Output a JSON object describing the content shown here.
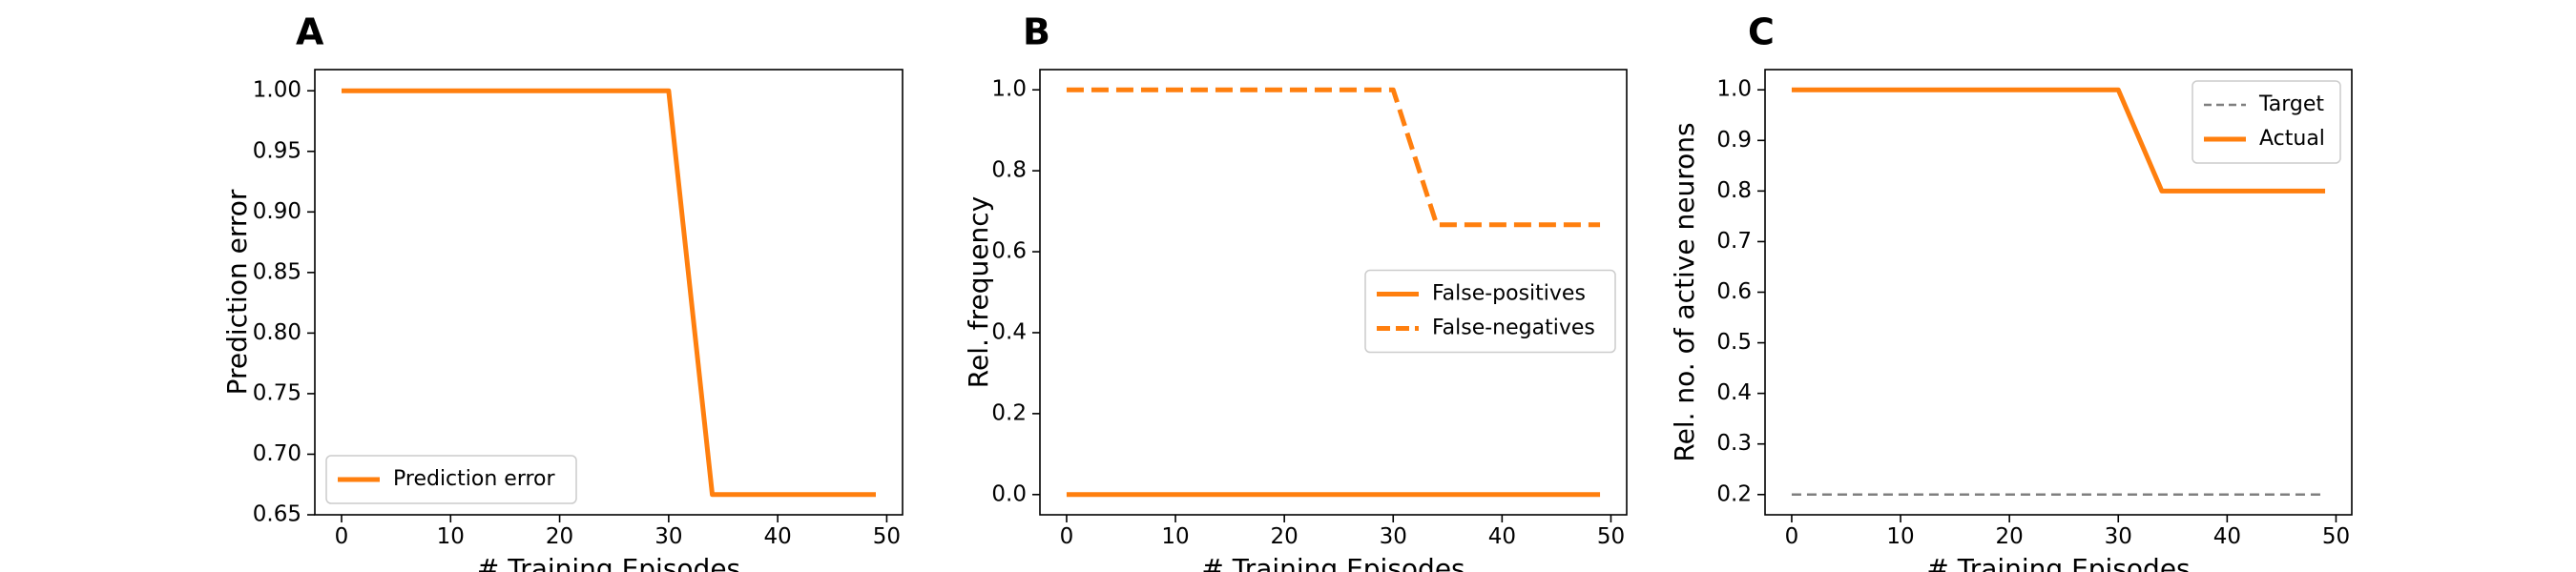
{
  "chart_data": [
    {
      "panel": "A",
      "type": "line",
      "xlabel": "# Training Episodes",
      "ylabel": "Prediction error",
      "xlim": [
        -2.45,
        51.45
      ],
      "ylim": [
        0.65,
        1.0175
      ],
      "xticks": [
        0,
        10,
        20,
        30,
        40,
        50
      ],
      "yticks": [
        0.65,
        0.7,
        0.75,
        0.8,
        0.85,
        0.9,
        0.95,
        1.0
      ],
      "ytick_labels": [
        "0.65",
        "0.70",
        "0.75",
        "0.80",
        "0.85",
        "0.90",
        "0.95",
        "1.00"
      ],
      "legend_position": "lower-left",
      "series": [
        {
          "name": "Prediction error",
          "color": "#ff7f0e",
          "dash": "solid",
          "x": [
            0,
            30,
            34,
            49
          ],
          "y": [
            1.0,
            1.0,
            0.6667,
            0.6667
          ]
        }
      ]
    },
    {
      "panel": "B",
      "type": "line",
      "xlabel": "# Training Episodes",
      "ylabel": "Rel. frequency",
      "xlim": [
        -2.45,
        51.45
      ],
      "ylim": [
        -0.05,
        1.05
      ],
      "xticks": [
        0,
        10,
        20,
        30,
        40,
        50
      ],
      "yticks": [
        0.0,
        0.2,
        0.4,
        0.6,
        0.8,
        1.0
      ],
      "ytick_labels": [
        "0.0",
        "0.2",
        "0.4",
        "0.6",
        "0.8",
        "1.0"
      ],
      "legend_position": "center-right",
      "series": [
        {
          "name": "False-positives",
          "color": "#ff7f0e",
          "dash": "solid",
          "x": [
            0,
            49
          ],
          "y": [
            0.0,
            0.0
          ]
        },
        {
          "name": "False-negatives",
          "color": "#ff7f0e",
          "dash": "dashed",
          "x": [
            0,
            30,
            34,
            49
          ],
          "y": [
            1.0,
            1.0,
            0.6667,
            0.6667
          ]
        }
      ]
    },
    {
      "panel": "C",
      "type": "line",
      "xlabel": "# Training Episodes",
      "ylabel": "Rel. no. of active neurons",
      "xlim": [
        -2.45,
        51.45
      ],
      "ylim": [
        0.16,
        1.04
      ],
      "xticks": [
        0,
        10,
        20,
        30,
        40,
        50
      ],
      "yticks": [
        0.2,
        0.3,
        0.4,
        0.5,
        0.6,
        0.7,
        0.8,
        0.9,
        1.0
      ],
      "ytick_labels": [
        "0.2",
        "0.3",
        "0.4",
        "0.5",
        "0.6",
        "0.7",
        "0.8",
        "0.9",
        "1.0"
      ],
      "legend_position": "upper-right",
      "series": [
        {
          "name": "Target",
          "color": "#7f7f7f",
          "dash": "dashed-thin",
          "x": [
            0,
            49
          ],
          "y": [
            0.2,
            0.2
          ]
        },
        {
          "name": "Actual",
          "color": "#ff7f0e",
          "dash": "solid",
          "x": [
            0,
            30,
            34,
            49
          ],
          "y": [
            1.0,
            1.0,
            0.8,
            0.8
          ]
        }
      ]
    }
  ]
}
